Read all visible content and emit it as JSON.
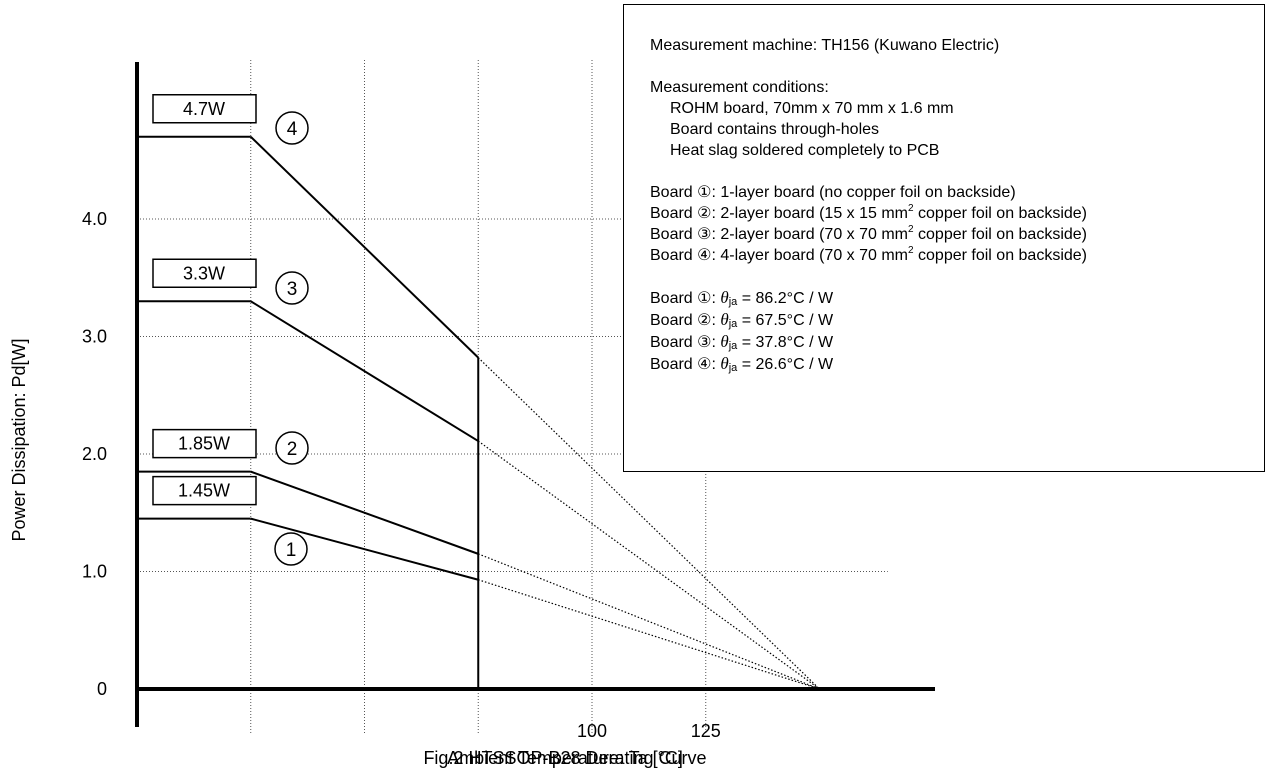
{
  "chart_data": {
    "type": "line",
    "title": "Fig.2 HTSSOP-B28 Derating Curve",
    "xlabel": "Ambient Temperature: Ta [°C]",
    "ylabel": "Power Dissipation: Pd[W]",
    "xlim": [
      0,
      150
    ],
    "ylim": [
      0,
      5
    ],
    "x_ticks": [
      100,
      125
    ],
    "y_ticks": [
      {
        "value": 0,
        "label": "0"
      },
      {
        "value": 1,
        "label": "1.0"
      },
      {
        "value": 2,
        "label": "2.0"
      },
      {
        "value": 3,
        "label": "3.0"
      },
      {
        "value": 4,
        "label": "4.0"
      }
    ],
    "x_gridlines": [
      25,
      50,
      75,
      100,
      125
    ],
    "y_gridlines": [
      1,
      2,
      3,
      4
    ],
    "grid": true,
    "vertical_marker_x": 75,
    "series": [
      {
        "marker": "1",
        "flat_label": "1.45W",
        "points": [
          [
            0,
            1.45
          ],
          [
            25,
            1.45
          ],
          [
            75,
            0.93
          ],
          [
            150,
            0
          ]
        ]
      },
      {
        "marker": "2",
        "flat_label": "1.85W",
        "points": [
          [
            0,
            1.85
          ],
          [
            25,
            1.85
          ],
          [
            75,
            1.15
          ],
          [
            150,
            0
          ]
        ]
      },
      {
        "marker": "3",
        "flat_label": "3.3W",
        "points": [
          [
            0,
            3.3
          ],
          [
            25,
            3.3
          ],
          [
            75,
            2.11
          ],
          [
            150,
            0
          ]
        ]
      },
      {
        "marker": "4",
        "flat_label": "4.7W",
        "points": [
          [
            0,
            4.7
          ],
          [
            25,
            4.7
          ],
          [
            75,
            2.82
          ],
          [
            150,
            0
          ]
        ]
      }
    ],
    "solid_until_x": 75
  },
  "conditions": {
    "machine": "Measurement machine: TH156 (Kuwano Electric)",
    "cond_title": "Measurement conditions:",
    "cond_lines": [
      "ROHM board, 70mm x 70 mm x 1.6 mm",
      "Board contains through-holes",
      "Heat slag soldered completely to PCB"
    ],
    "boards": [
      {
        "prefix": "Board ①: 1-layer board (no copper foil on backside)",
        "sup": "",
        "suffix": ""
      },
      {
        "prefix": "Board ②: 2-layer board (15 x 15 mm",
        "sup": "2",
        "suffix": " copper foil on backside)"
      },
      {
        "prefix": "Board ③: 2-layer board (70 x 70 mm",
        "sup": "2",
        "suffix": " copper foil on backside)"
      },
      {
        "prefix": "Board ④: 4-layer board (70 x 70 mm",
        "sup": "2",
        "suffix": " copper foil on backside)"
      }
    ],
    "theta_symbol": "θ",
    "theta_sub": "ja",
    "thetas": [
      {
        "prefix": "Board ①: ",
        "value": " = 86.2°C / W"
      },
      {
        "prefix": "Board ②: ",
        "value": " = 67.5°C / W"
      },
      {
        "prefix": "Board ③: ",
        "value": " = 37.8°C / W"
      },
      {
        "prefix": "Board ④: ",
        "value": " = 26.6°C / W"
      }
    ]
  }
}
